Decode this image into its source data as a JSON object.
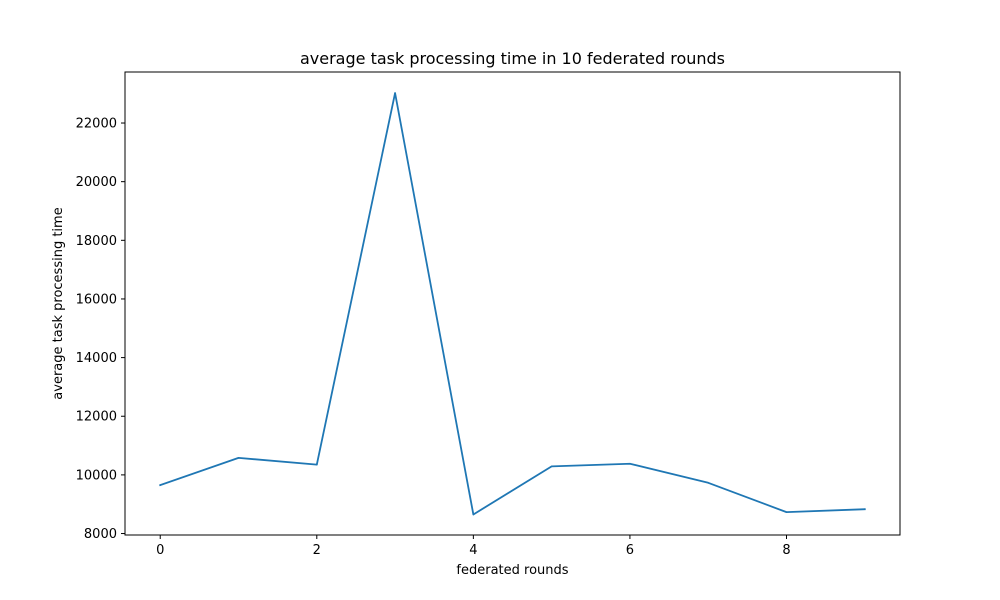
{
  "chart_data": {
    "type": "line",
    "title": "average task processing time in 10 federated rounds",
    "xlabel": "federated rounds",
    "ylabel": "average task processing time",
    "x": [
      0,
      1,
      2,
      3,
      4,
      5,
      6,
      7,
      8,
      9
    ],
    "series": [
      {
        "values": [
          9650,
          10580,
          10350,
          23020,
          8650,
          10290,
          10380,
          9730,
          8730,
          8830
        ],
        "color": "#1f77b4"
      }
    ],
    "xlim": [
      -0.45,
      9.45
    ],
    "ylim": [
      7950,
      23740
    ],
    "xticks": [
      0,
      2,
      4,
      6,
      8
    ],
    "yticks": [
      8000,
      10000,
      12000,
      14000,
      16000,
      18000,
      20000,
      22000
    ],
    "xtick_labels": [
      "0",
      "2",
      "4",
      "6",
      "8"
    ],
    "ytick_labels": [
      "8000",
      "10000",
      "12000",
      "14000",
      "16000",
      "18000",
      "20000",
      "22000"
    ],
    "grid": false,
    "legend": false
  }
}
